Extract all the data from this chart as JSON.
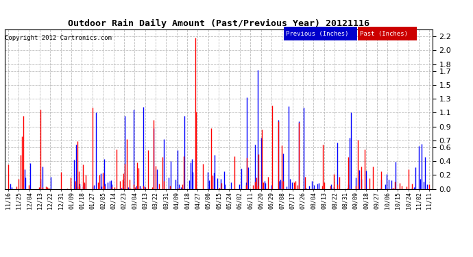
{
  "title": "Outdoor Rain Daily Amount (Past/Previous Year) 20121116",
  "copyright": "Copyright 2012 Cartronics.com",
  "legend_previous": "Previous (Inches)",
  "legend_past": "Past (Inches)",
  "legend_previous_color": "#0000FF",
  "legend_past_color": "#FF0000",
  "legend_previous_bg": "#0000CC",
  "legend_past_bg": "#CC0000",
  "background_color": "#FFFFFF",
  "plot_bg": "#FFFFFF",
  "grid_color": "#BBBBBB",
  "ylim": [
    0.0,
    2.3
  ],
  "yticks": [
    0.0,
    0.2,
    0.4,
    0.6,
    0.7,
    0.9,
    1.1,
    1.3,
    1.5,
    1.7,
    1.8,
    2.0,
    2.2
  ],
  "num_days": 366,
  "line_width": 1.0
}
